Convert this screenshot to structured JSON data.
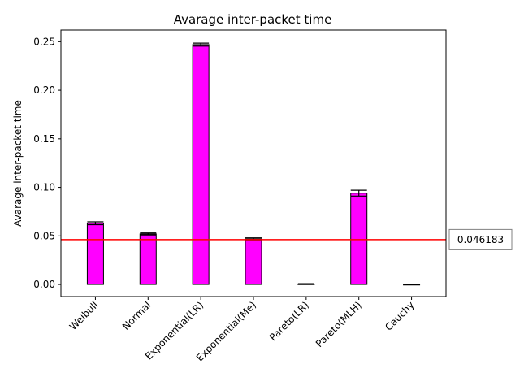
{
  "chart_data": {
    "type": "bar",
    "title": "Avarage inter-packet time",
    "xlabel": "",
    "ylabel": "Avarage inter-packet time",
    "categories": [
      "Weibull",
      "Normal",
      "Exponential(LR)",
      "Exponential(Me)",
      "Pareto(LR)",
      "Pareto(MLH)",
      "Cauchy"
    ],
    "values": [
      0.063,
      0.052,
      0.247,
      0.047,
      0.0005,
      0.094,
      0.0001
    ],
    "error": [
      0.0015,
      0.001,
      0.0015,
      0.001,
      0.0003,
      0.003,
      0.0002
    ],
    "ylim": [
      -0.0125,
      0.262
    ],
    "yticks": [
      0.0,
      0.05,
      0.1,
      0.15,
      0.2,
      0.25
    ],
    "ytick_labels": [
      "0.00",
      "0.05",
      "0.10",
      "0.15",
      "0.20",
      "0.25"
    ],
    "reference_line": {
      "value": 0.046183,
      "label": "0.046183",
      "color": "#ff0000"
    },
    "bar_color": "#ff00ff",
    "edge_color": "#000000",
    "grid": false,
    "legend": "none"
  }
}
